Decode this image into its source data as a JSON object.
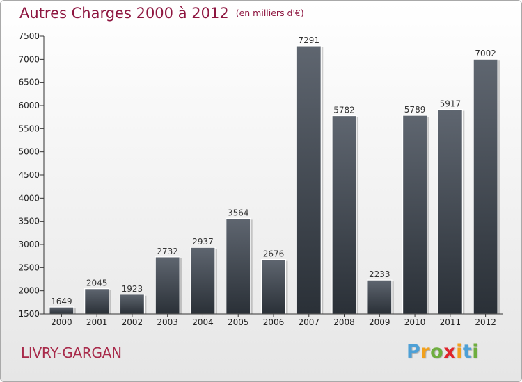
{
  "chart_data": {
    "type": "bar",
    "title": "Autres Charges 2000 à 2012",
    "subtitle": "(en milliers d'€)",
    "xlabel": "",
    "ylabel": "",
    "categories": [
      "2000",
      "2001",
      "2002",
      "2003",
      "2004",
      "2005",
      "2006",
      "2007",
      "2008",
      "2009",
      "2010",
      "2011",
      "2012"
    ],
    "values": [
      1649,
      2045,
      1923,
      2732,
      2937,
      3564,
      2676,
      7291,
      5782,
      2233,
      5789,
      5917,
      7002
    ],
    "ylim": [
      1500,
      7500
    ],
    "yticks": [
      1500,
      2000,
      2500,
      3000,
      3500,
      4000,
      4500,
      5000,
      5500,
      6000,
      6500,
      7000,
      7500
    ],
    "grid": false,
    "legend": "none",
    "bar_color_top": "#5f6670",
    "bar_color_bottom": "#2a3037"
  },
  "footer": {
    "place": "LIVRY-GARGAN",
    "brand_letters": [
      {
        "ch": "P",
        "color": "#4ea0d6"
      },
      {
        "ch": "r",
        "color": "#f2a11d"
      },
      {
        "ch": "o",
        "color": "#6fae3f"
      },
      {
        "ch": "x",
        "color": "#e0242b"
      },
      {
        "ch": "i",
        "color": "#f2a11d"
      },
      {
        "ch": "t",
        "color": "#4ea0d6"
      },
      {
        "ch": "i",
        "color": "#6fae3f"
      }
    ]
  }
}
